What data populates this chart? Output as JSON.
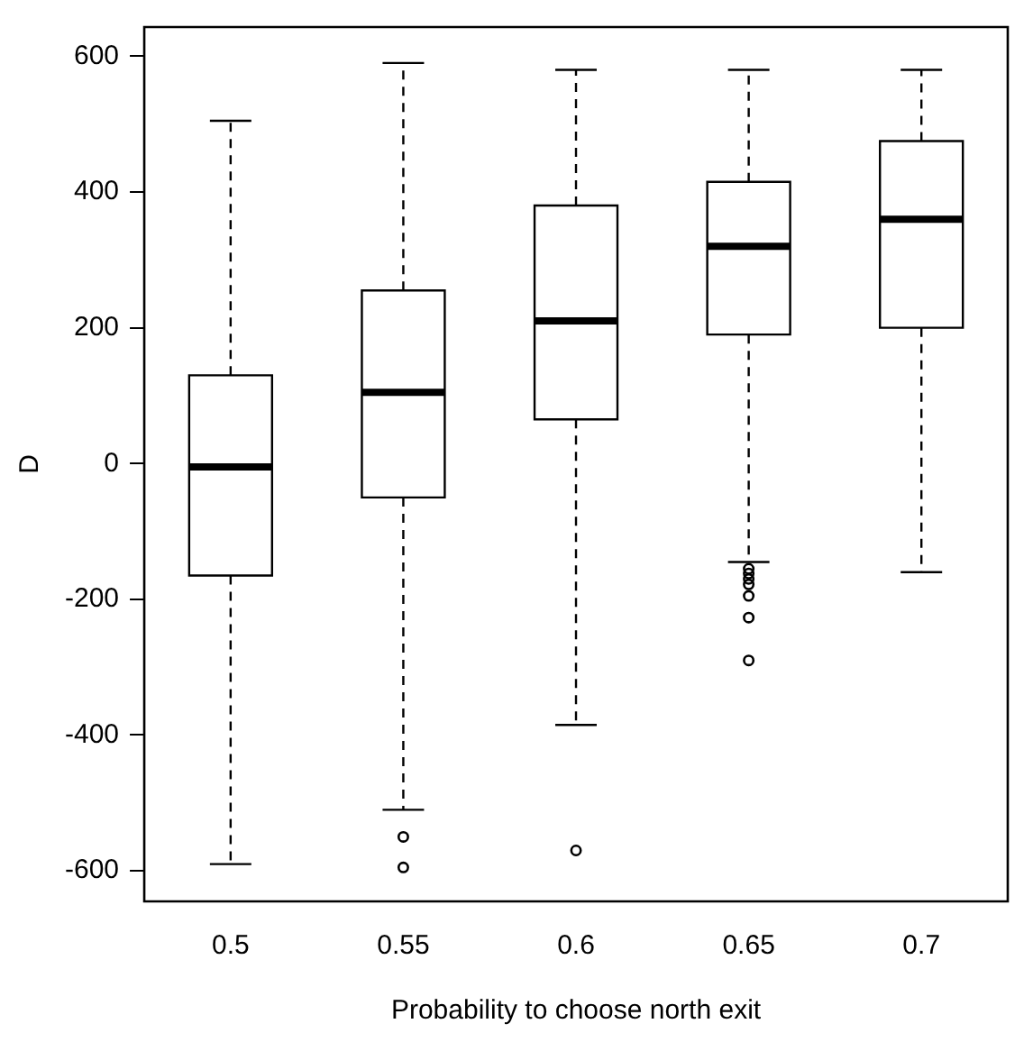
{
  "chart_data": {
    "type": "box",
    "xlabel": "Probability to choose north exit",
    "ylabel": "D",
    "categories": [
      "0.5",
      "0.55",
      "0.6",
      "0.65",
      "0.7"
    ],
    "boxes": [
      {
        "low": -590,
        "q1": -165,
        "median": -5,
        "q3": 130,
        "high": 505
      },
      {
        "low": -510,
        "q1": -50,
        "median": 105,
        "q3": 255,
        "high": 590,
        "outliers": [
          -550,
          -595
        ]
      },
      {
        "low": -385,
        "q1": 65,
        "median": 210,
        "q3": 380,
        "high": 580,
        "outliers": [
          -570
        ]
      },
      {
        "low": -145,
        "q1": 190,
        "median": 320,
        "q3": 415,
        "high": 580,
        "outliers": [
          -155,
          -162,
          -170,
          -178,
          -195,
          -227,
          -290
        ]
      },
      {
        "low": -160,
        "q1": 200,
        "median": 360,
        "q3": 475,
        "high": 580
      }
    ],
    "color": "#000000",
    "ylim": [
      -645,
      643
    ],
    "yticks": [
      -600,
      -400,
      -200,
      0,
      200,
      400,
      600
    ],
    "grid": false,
    "legend": false
  }
}
